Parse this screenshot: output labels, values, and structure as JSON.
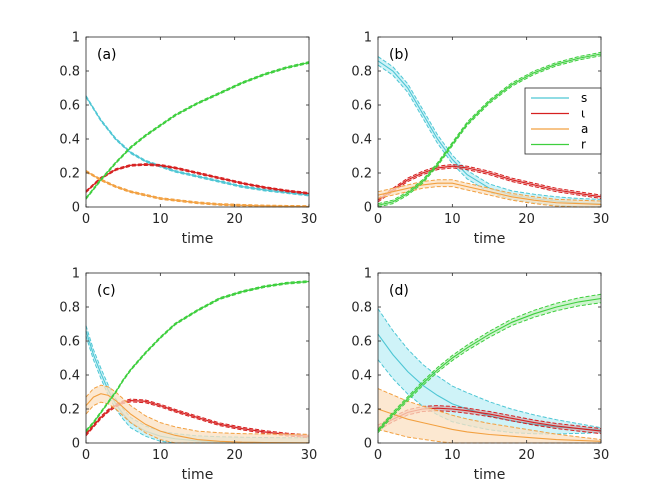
{
  "colors": {
    "s": "#4ec6d4",
    "i": "#d62020",
    "a": "#f2a040",
    "r": "#3ecf3e",
    "s_band": "#bfeff5",
    "a_band": "#fbe0c2"
  },
  "chart_data": [
    {
      "type": "line",
      "panel": "(a)",
      "xlabel": "time",
      "ylabel": "",
      "xlim": [
        0,
        30
      ],
      "ylim": [
        0,
        1
      ],
      "xticks": [
        0,
        10,
        20,
        30
      ],
      "yticks": [
        0,
        0.2,
        0.4,
        0.6,
        0.8,
        1
      ],
      "x": [
        0,
        2,
        4,
        6,
        8,
        10,
        12,
        15,
        18,
        21,
        24,
        27,
        30
      ],
      "series": [
        {
          "name": "s",
          "values": [
            0.65,
            0.51,
            0.4,
            0.32,
            0.27,
            0.24,
            0.21,
            0.18,
            0.15,
            0.12,
            0.1,
            0.085,
            0.07
          ],
          "band": 0.005
        },
        {
          "name": "ι",
          "values": [
            0.09,
            0.17,
            0.22,
            0.245,
            0.25,
            0.245,
            0.23,
            0.2,
            0.17,
            0.14,
            0.115,
            0.095,
            0.08
          ],
          "band": 0.005
        },
        {
          "name": "a",
          "values": [
            0.21,
            0.16,
            0.12,
            0.09,
            0.07,
            0.05,
            0.04,
            0.025,
            0.015,
            0.01,
            0.006,
            0.004,
            0.003
          ],
          "band": 0.005
        },
        {
          "name": "r",
          "values": [
            0.05,
            0.16,
            0.26,
            0.35,
            0.42,
            0.48,
            0.54,
            0.61,
            0.67,
            0.73,
            0.78,
            0.82,
            0.85
          ],
          "band": 0.005
        }
      ]
    },
    {
      "type": "line",
      "panel": "(b)",
      "xlabel": "time",
      "ylabel": "",
      "xlim": [
        0,
        30
      ],
      "ylim": [
        0,
        1
      ],
      "xticks": [
        0,
        10,
        20,
        30
      ],
      "yticks": [
        0,
        0.2,
        0.4,
        0.6,
        0.8,
        1
      ],
      "x": [
        0,
        2,
        4,
        6,
        8,
        10,
        12,
        15,
        18,
        21,
        24,
        27,
        30
      ],
      "series": [
        {
          "name": "s",
          "values": [
            0.86,
            0.8,
            0.7,
            0.55,
            0.4,
            0.28,
            0.19,
            0.11,
            0.07,
            0.05,
            0.035,
            0.025,
            0.02
          ],
          "band": 0.025
        },
        {
          "name": "ι",
          "values": [
            0.04,
            0.1,
            0.16,
            0.2,
            0.23,
            0.24,
            0.23,
            0.2,
            0.16,
            0.13,
            0.1,
            0.08,
            0.06
          ],
          "band": 0.01
        },
        {
          "name": "a",
          "values": [
            0.07,
            0.09,
            0.11,
            0.13,
            0.14,
            0.14,
            0.12,
            0.09,
            0.06,
            0.04,
            0.025,
            0.02,
            0.015
          ],
          "band": 0.02
        },
        {
          "name": "r",
          "values": [
            0.01,
            0.03,
            0.08,
            0.15,
            0.25,
            0.37,
            0.49,
            0.62,
            0.72,
            0.79,
            0.84,
            0.875,
            0.9
          ],
          "band": 0.01
        }
      ],
      "legend": {
        "entries": [
          "s",
          "ι",
          "a",
          "r"
        ],
        "position": "right"
      }
    },
    {
      "type": "line",
      "panel": "(c)",
      "xlabel": "time",
      "ylabel": "",
      "xlim": [
        0,
        30
      ],
      "ylim": [
        0,
        1
      ],
      "xticks": [
        0,
        10,
        20,
        30
      ],
      "yticks": [
        0,
        0.2,
        0.4,
        0.6,
        0.8,
        1
      ],
      "x": [
        0,
        1,
        2,
        3,
        4,
        5,
        6,
        8,
        10,
        12,
        15,
        18,
        21,
        24,
        27,
        30
      ],
      "series": [
        {
          "name": "s",
          "values": [
            0.66,
            0.52,
            0.41,
            0.31,
            0.23,
            0.17,
            0.12,
            0.07,
            0.04,
            0.025,
            0.012,
            0.007,
            0.004,
            0.002,
            0.001,
            0.001
          ],
          "band": 0.03
        },
        {
          "name": "ι",
          "values": [
            0.05,
            0.1,
            0.15,
            0.19,
            0.22,
            0.24,
            0.25,
            0.245,
            0.22,
            0.19,
            0.15,
            0.11,
            0.085,
            0.065,
            0.05,
            0.04
          ],
          "band": 0.008
        },
        {
          "name": "a",
          "values": [
            0.22,
            0.27,
            0.29,
            0.28,
            0.25,
            0.21,
            0.17,
            0.11,
            0.07,
            0.045,
            0.02,
            0.01,
            0.005,
            0.003,
            0.002,
            0.001
          ],
          "band": 0.05
        },
        {
          "name": "r",
          "values": [
            0.07,
            0.12,
            0.18,
            0.24,
            0.3,
            0.37,
            0.43,
            0.53,
            0.62,
            0.7,
            0.78,
            0.85,
            0.89,
            0.92,
            0.94,
            0.95
          ],
          "band": 0.005
        }
      ]
    },
    {
      "type": "line",
      "panel": "(d)",
      "xlabel": "time",
      "ylabel": "",
      "xlim": [
        0,
        30
      ],
      "ylim": [
        0,
        1
      ],
      "xticks": [
        0,
        10,
        20,
        30
      ],
      "yticks": [
        0,
        0.2,
        0.4,
        0.6,
        0.8,
        1
      ],
      "x": [
        0,
        2,
        4,
        6,
        8,
        10,
        12,
        15,
        18,
        21,
        24,
        27,
        30
      ],
      "series": [
        {
          "name": "s",
          "values": [
            0.64,
            0.52,
            0.42,
            0.34,
            0.28,
            0.23,
            0.2,
            0.16,
            0.13,
            0.11,
            0.095,
            0.085,
            0.075
          ],
          "band_start": 0.15,
          "band_end": 0.015
        },
        {
          "name": "ι",
          "values": [
            0.09,
            0.14,
            0.18,
            0.2,
            0.205,
            0.2,
            0.19,
            0.17,
            0.145,
            0.12,
            0.1,
            0.085,
            0.07
          ],
          "band_start": 0.015,
          "band_end": 0.015
        },
        {
          "name": "a",
          "values": [
            0.2,
            0.17,
            0.14,
            0.12,
            0.1,
            0.08,
            0.065,
            0.05,
            0.04,
            0.03,
            0.02,
            0.015,
            0.01
          ],
          "band_start": 0.12,
          "band_end": 0.01
        },
        {
          "name": "r",
          "values": [
            0.07,
            0.17,
            0.26,
            0.35,
            0.43,
            0.5,
            0.56,
            0.64,
            0.71,
            0.76,
            0.8,
            0.83,
            0.85
          ],
          "band_start": 0.01,
          "band_end": 0.025
        }
      ]
    }
  ]
}
